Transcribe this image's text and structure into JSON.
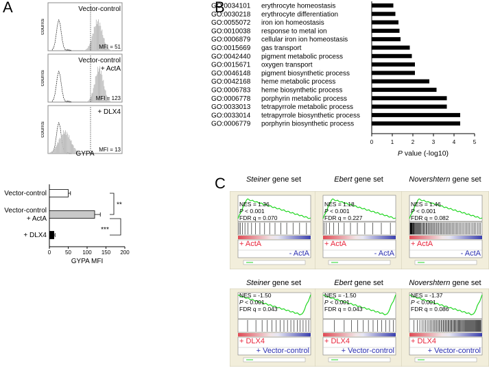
{
  "panels": {
    "a": "A",
    "b": "B",
    "c": "C"
  },
  "histograms": [
    {
      "label_line1": "Vector-control",
      "label_line2": "",
      "mfi": "MFI = 51",
      "ylabel": "counts",
      "peak": 0.68
    },
    {
      "label_line1": "Vector-control",
      "label_line2": "+ ActA",
      "mfi": "MFI = 123",
      "ylabel": "counts",
      "peak": 0.78
    },
    {
      "label_line1": "+ DLX4",
      "label_line2": "",
      "mfi": "MFI = 13",
      "ylabel": "counts",
      "peak": 0.5
    }
  ],
  "histogram_xlabel": "GYPA",
  "chart_data": [
    {
      "type": "bar",
      "orientation": "horizontal",
      "categories": [
        "Vector-control",
        "Vector-control + ActA",
        "+ DLX4"
      ],
      "category_lines": [
        [
          "Vector-control"
        ],
        [
          "Vector-control",
          "+ ActA"
        ],
        [
          "+ DLX4"
        ]
      ],
      "values": [
        50,
        120,
        12
      ],
      "errors": [
        6,
        15,
        3
      ],
      "colors": [
        "#ffffff",
        "#c8c8c8",
        "#000000"
      ],
      "xlabel": "GYPA MFI",
      "xticks": [
        "0",
        "50",
        "100",
        "150",
        "200"
      ],
      "xlim": [
        0,
        200
      ],
      "significance": [
        "**",
        "***"
      ]
    },
    {
      "type": "bar",
      "orientation": "horizontal",
      "categories": [
        "GO:0034101 erythrocyte homeostasis",
        "GO:0030218 erythrocyte differentiation",
        "GO:0055072 iron ion homeostasis",
        "GO:0010038 response to metal ion",
        "GO:0006879 cellular iron ion homeostasis",
        "GO:0015669 gas transport",
        "GO:0042440 pigment metabolic process",
        "GO:0015671 oxygen transport",
        "GO:0046148 pigment biosynthetic process",
        "GO:0042168 heme metabolic process",
        "GO:0006783 heme biosynthetic process",
        "GO:0006778 porphyrin metabolic process",
        "GO:0033013 tetrapyrrole metabolic process",
        "GO:0033014 tetrapyrrole biosynthetic process",
        "GO:0006779 porphyrin biosynthetic process"
      ],
      "go_ids": [
        "GO:0034101",
        "GO:0030218",
        "GO:0055072",
        "GO:0010038",
        "GO:0006879",
        "GO:0015669",
        "GO:0042440",
        "GO:0015671",
        "GO:0046148",
        "GO:0042168",
        "GO:0006783",
        "GO:0006778",
        "GO:0033013",
        "GO:0033014",
        "GO:0006779"
      ],
      "terms": [
        "erythrocyte homeostasis",
        "erythrocyte differentiation",
        "iron ion homeostasis",
        "response to metal ion",
        "cellular iron ion homeostasis",
        "gas transport",
        "pigment metabolic process",
        "oxygen transport",
        "pigment biosynthetic process",
        "heme metabolic process",
        "heme biosynthetic process",
        "porphyrin metabolic process",
        "tetrapyrrole metabolic process",
        "tetrapyrrole biosynthetic process",
        "porphyrin biosynthetic process"
      ],
      "values": [
        1.05,
        1.15,
        1.3,
        1.35,
        1.4,
        1.85,
        1.95,
        2.1,
        2.1,
        2.8,
        3.15,
        3.65,
        3.65,
        4.3,
        4.3
      ],
      "xlabel": "P value (-log10)",
      "xlabel_italic": "P",
      "xlabel_rest": " value (-log10)",
      "xticks": [
        "0",
        "1",
        "2",
        "3",
        "4",
        "5"
      ],
      "xlim": [
        0,
        5
      ]
    }
  ],
  "gsea": [
    {
      "set_name": "Steiner",
      "nes": "NES = 1.36",
      "p": "< 0.001",
      "fdr": "FDR q = 0.070",
      "left": "+ ActA",
      "right": "- ActA",
      "shape": "pos",
      "density": 16
    },
    {
      "set_name": "Ebert",
      "nes": "NES = 1.18",
      "p": "< 0.001",
      "fdr": "FDR q = 0.227",
      "left": "+ ActA",
      "right": "- ActA",
      "shape": "pos",
      "density": 12
    },
    {
      "set_name": "Novershtern",
      "nes": "NES = 1.46",
      "p": "< 0.001",
      "fdr": "FDR q = 0.082",
      "left": "+ ActA",
      "right": "- ActA",
      "shape": "pos",
      "density": 70
    },
    {
      "set_name": "Steiner",
      "nes": "NES = -1.50",
      "p": "< 0.001",
      "fdr": "FDR q = 0.043",
      "left": "+ DLX4",
      "right": "+ Vector-control",
      "shape": "neg",
      "density": 16
    },
    {
      "set_name": "Ebert",
      "nes": "NES = -1.50",
      "p": "< 0.001",
      "fdr": "FDR q = 0.043",
      "left": "+ DLX4",
      "right": "+ Vector-control",
      "shape": "neg",
      "density": 12
    },
    {
      "set_name": "Novershtern",
      "nes": "NES = -1.37",
      "p": "< 0.001",
      "fdr": "FDR q = 0.086",
      "left": "+ DLX4",
      "right": "+ Vector-control",
      "shape": "neg",
      "density": 70
    }
  ],
  "gsea_labels": {
    "gene_set": " gene set",
    "p_italic": "P",
    "p_prefix": " "
  },
  "colors": {
    "red": "#e8243a",
    "blue": "#2a2fb0",
    "green": "#1fd61f",
    "hist_fill": "#c0c0c0"
  }
}
